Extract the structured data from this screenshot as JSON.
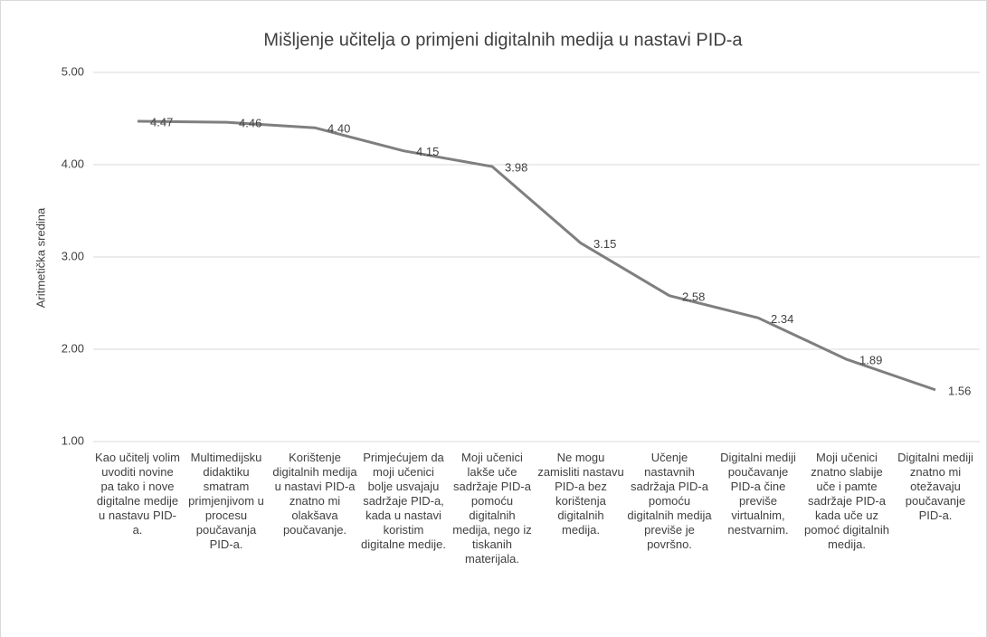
{
  "chart_data": {
    "type": "line",
    "title": "Mišljenje učitelja o primjeni digitalnih medija u nastavi PID-a",
    "y_label": "Aritmetička sredina",
    "categories": [
      "Kao učitelj volim uvoditi novine pa tako i nove digitalne medije u nastavu PID-a.",
      "Multimedijsku didaktiku smatram primjenjivom u procesu poučavanja PID-a.",
      "Korištenje digitalnih medija u nastavi PID-a znatno mi olakšava poučavanje.",
      "Primjećujem da moji učenici bolje usvajaju sadržaje PID-a, kada u nastavi koristim digitalne medije.",
      "Moji učenici lakše uče sadržaje PID-a pomoću digitalnih medija, nego iz tiskanih materijala.",
      "Ne mogu zamisliti nastavu PID-a bez korištenja digitalnih medija.",
      "Učenje nastavnih sadržaja PID-a pomoću digitalnih medija previše je površno.",
      "Digitalni mediji poučavanje PID-a čine previše virtualnim, nestvarnim.",
      "Moji učenici znatno slabije uče i pamte sadržaje PID-a kada uče uz pomoć digitalnih medija.",
      "Digitalni mediji znatno mi otežavaju poučavanje PID-a."
    ],
    "series": [
      {
        "name": "Aritmetička sredina",
        "color": "#7f7f7f",
        "values": [
          4.47,
          4.46,
          4.4,
          4.15,
          3.98,
          3.15,
          2.58,
          2.34,
          1.89,
          1.56
        ],
        "value_labels": [
          "4.47",
          "4.46",
          "4.40",
          "4.15",
          "3.98",
          "3.15",
          "2.58",
          "2.34",
          "1.89",
          "1.56"
        ]
      }
    ],
    "ylim": [
      1,
      5
    ],
    "yticks": [
      {
        "value": 1,
        "label": "1.00"
      },
      {
        "value": 2,
        "label": "2.00"
      },
      {
        "value": 3,
        "label": "3.00"
      },
      {
        "value": 4,
        "label": "4.00"
      },
      {
        "value": 5,
        "label": "5.00"
      }
    ],
    "grid": true
  }
}
